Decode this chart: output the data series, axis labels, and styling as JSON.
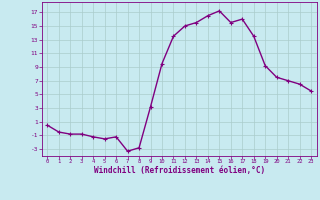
{
  "x": [
    0,
    1,
    2,
    3,
    4,
    5,
    6,
    7,
    8,
    9,
    10,
    11,
    12,
    13,
    14,
    15,
    16,
    17,
    18,
    19,
    20,
    21,
    22,
    23
  ],
  "y": [
    0.5,
    -0.5,
    -0.8,
    -0.8,
    -1.2,
    -1.5,
    -1.2,
    -3.3,
    -2.8,
    3.2,
    9.5,
    13.5,
    15.0,
    15.5,
    16.5,
    17.2,
    15.5,
    16.0,
    13.5,
    9.2,
    7.5,
    7.0,
    6.5,
    5.5
  ],
  "line_color": "#800080",
  "marker": "+",
  "marker_size": 3,
  "bg_color": "#c8eaf0",
  "grid_color": "#aacccc",
  "ylabel_ticks": [
    -3,
    -1,
    1,
    3,
    5,
    7,
    9,
    11,
    13,
    15,
    17
  ],
  "xtick_labels": [
    "0",
    "1",
    "2",
    "3",
    "4",
    "5",
    "6",
    "7",
    "8",
    "9",
    "10",
    "11",
    "12",
    "13",
    "14",
    "15",
    "16",
    "17",
    "18",
    "19",
    "20",
    "21",
    "22",
    "23"
  ],
  "ylim": [
    -4,
    18.5
  ],
  "xlim": [
    -0.5,
    23.5
  ],
  "xlabel": "Windchill (Refroidissement éolien,°C)",
  "xlabel_color": "#800080",
  "tick_color": "#800080",
  "line_width": 1.0
}
